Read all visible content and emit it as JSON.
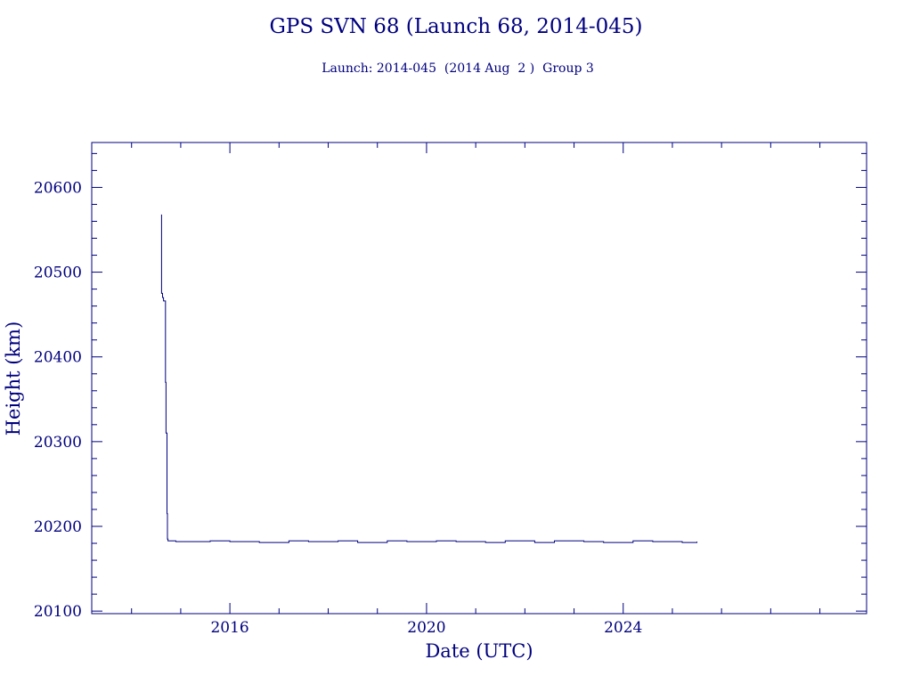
{
  "chart_data": {
    "type": "line",
    "title": "GPS SVN 68 (Launch 68, 2014-045)",
    "subtitle": "Launch: 2014-045  (2014 Aug  2 )  Group 3",
    "xlabel": "Date (UTC)",
    "ylabel": "Height (km)",
    "xlim": [
      2013.19,
      2028.95
    ],
    "ylim": [
      20097,
      20653
    ],
    "x_ticks": [
      2016,
      2020,
      2024
    ],
    "x_tick_labels": [
      "2016",
      "2020",
      "2024"
    ],
    "y_ticks": [
      20100,
      20200,
      20300,
      20400,
      20500,
      20600
    ],
    "y_tick_labels": [
      "20100",
      "20200",
      "20300",
      "20400",
      "20500",
      "20600"
    ],
    "grid": false,
    "color": "#00007f",
    "series": [
      {
        "x": [
          2014.61,
          2014.61,
          2014.63,
          2014.65,
          2014.66,
          2014.69,
          2014.7,
          2014.72,
          2014.73,
          2014.74,
          2014.76,
          2014.78,
          2014.9,
          2015.2,
          2015.6,
          2016.0,
          2016.6,
          2017.2,
          2017.6,
          2018.2,
          2018.6,
          2019.2,
          2019.6,
          2020.2,
          2020.6,
          2021.2,
          2021.6,
          2022.2,
          2022.6,
          2023.2,
          2023.6,
          2024.2,
          2024.6,
          2025.2,
          2025.5
        ],
        "y": [
          20568,
          20475,
          20470,
          20466,
          20466,
          20370,
          20310,
          20215,
          20185,
          20183,
          20183,
          20183,
          20182,
          20182,
          20183,
          20182,
          20181,
          20183,
          20182,
          20183,
          20181,
          20183,
          20182,
          20183,
          20182,
          20181,
          20183,
          20181,
          20183,
          20182,
          20181,
          20183,
          20182,
          20181,
          20182
        ]
      }
    ]
  }
}
